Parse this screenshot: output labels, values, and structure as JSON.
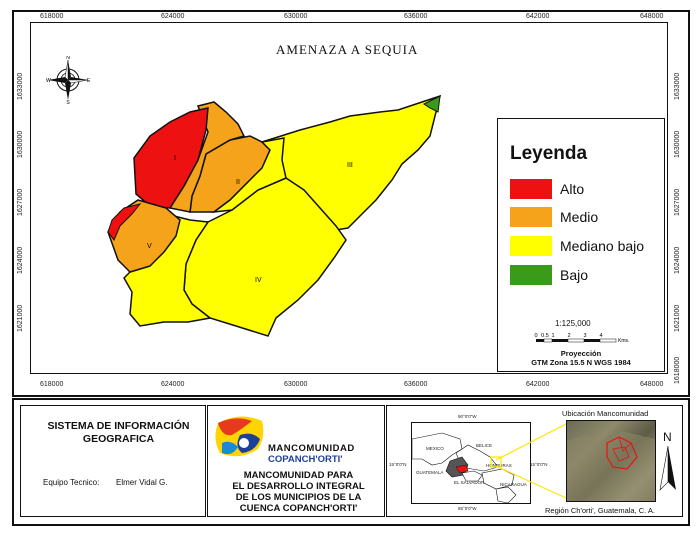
{
  "map": {
    "title": "AMENAZA  A SEQUIA",
    "x_ticks": [
      "618000",
      "624000",
      "630000",
      "636000",
      "642000",
      "648000"
    ],
    "y_ticks": [
      "1633000",
      "1630000",
      "1627000",
      "1624000",
      "1621000",
      "1618000"
    ],
    "north_arrow": {
      "n": "N",
      "s": "S",
      "e": "E",
      "w": "W"
    },
    "regions": [
      "I",
      "II",
      "III",
      "IV",
      "V"
    ],
    "colors": {
      "alto": "#ee1111",
      "medio": "#f5a31a",
      "mediano_bajo": "#ffff00",
      "bajo": "#3a9a1a",
      "outline": "#111111"
    }
  },
  "legend": {
    "title": "Leyenda",
    "items": [
      {
        "label": "Alto",
        "color": "#ee1111"
      },
      {
        "label": "Medio",
        "color": "#f5a31a"
      },
      {
        "label": "Mediano bajo",
        "color": "#ffff00"
      },
      {
        "label": "Bajo",
        "color": "#3a9a1a"
      }
    ],
    "scale_ratio": "1:125,000",
    "scale_labels": [
      "0",
      "0.5",
      "1",
      "2",
      "3",
      "4"
    ],
    "scale_unit": "Kms.",
    "projection_title": "Proyección",
    "projection": "GTM Zona 15.5 N WGS 1984"
  },
  "footer": {
    "sig_title_1": "SISTEMA DE INFORMACIÓN",
    "sig_title_2": "GEOGRAFICA",
    "equipo_label": "Equipo Tecnico:",
    "equipo_name": "Elmer Vidal G.",
    "logo_line1": "MANCOMUNIDAD",
    "logo_line2": "COPANCH'ORTI'",
    "desc_lines": [
      "MANCOMUNIDAD PARA",
      "EL DESARROLLO INTEGRAL",
      "DE LOS MUNICIPIOS DE LA",
      "CUENCA COPANCH'ORTI'"
    ],
    "inset_countries": [
      "MEXICO",
      "BELICE",
      "HONDURAS",
      "GUATEMALA",
      "EL SALVADOR",
      "NICARAGUA"
    ],
    "inset_coords": [
      "90°0'0\"W",
      "85°0'0\"W",
      "15°0'0\"N",
      "15°0'0\"N"
    ],
    "ubicacion_title": "Ubicación Mancomunidad",
    "ubicacion_north": "N",
    "region_caption": "Región Ch'orti', Guatemala, C. A."
  }
}
